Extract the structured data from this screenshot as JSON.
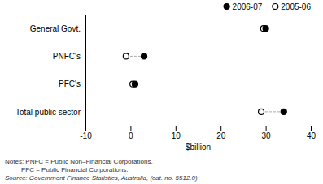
{
  "chart_data": {
    "type": "dot",
    "orientation": "horizontal",
    "categories": [
      "General Govt.",
      "PNFC's",
      "PFC's",
      "Total public sector"
    ],
    "series": [
      {
        "name": "2006-07",
        "color": "#000000",
        "marker": "circle",
        "values": [
          30.0,
          3.0,
          1.0,
          34.0
        ]
      },
      {
        "name": "2005-06",
        "color": "#000000",
        "marker": "circle-open",
        "values": [
          29.5,
          -1.0,
          0.5,
          29.0
        ]
      }
    ],
    "xlabel": "$billion",
    "xlim": [
      -10,
      40
    ],
    "xticks": [
      -10,
      0,
      10,
      20,
      30,
      40
    ],
    "legend": "upper right",
    "annotations": [
      "Notes: PNFC = Public Non–Financial Corporations.",
      "         PFC = Public Financial Corporations.",
      "Source: Government Finance Statistics, Australia, (cat. no. 5512.0)"
    ]
  }
}
